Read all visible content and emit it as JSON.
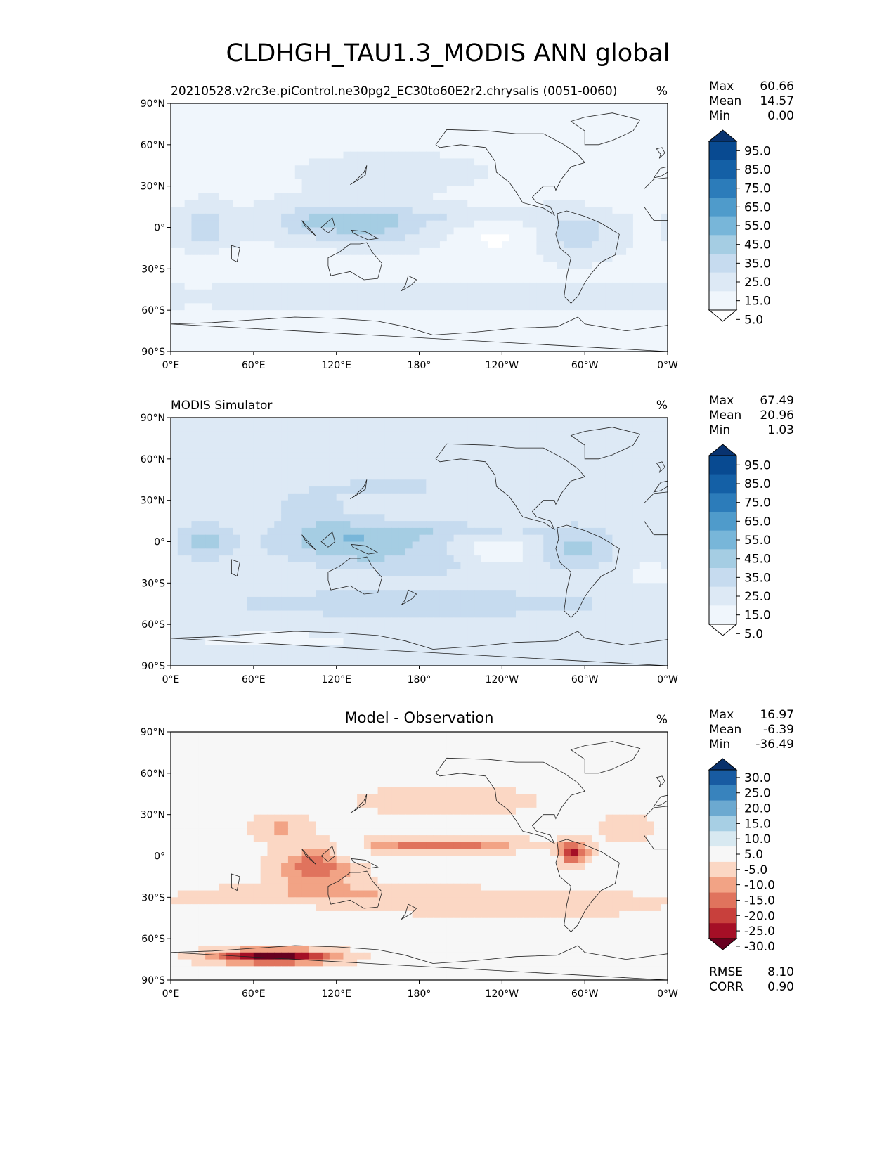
{
  "title": "CLDHGH_TAU1.3_MODIS ANN global",
  "panels": [
    {
      "kind": "test",
      "title_left": "20210528.v2rc3e.piControl.ne30pg2_EC30to60E2r2.chrysalis (0051-0060)",
      "title_center": "",
      "units": "%",
      "stats": [
        {
          "label": "Max",
          "value": "60.66"
        },
        {
          "label": "Mean",
          "value": "14.57"
        },
        {
          "label": "Min",
          "value": "0.00"
        }
      ],
      "colorbar": {
        "colors": [
          "#ffffff",
          "#f0f6fc",
          "#dde9f5",
          "#c6dbef",
          "#a5cde3",
          "#78b6d9",
          "#4f9bcb",
          "#2c7cba",
          "#1460a6",
          "#084a91",
          "#083370"
        ],
        "tick_labels": [
          "5.0",
          "15.0",
          "25.0",
          "35.0",
          "45.0",
          "55.0",
          "65.0",
          "75.0",
          "85.0",
          "95.0"
        ]
      }
    },
    {
      "kind": "reference",
      "title_left": "MODIS Simulator",
      "title_center": "",
      "units": "%",
      "stats": [
        {
          "label": "Max",
          "value": "67.49"
        },
        {
          "label": "Mean",
          "value": "20.96"
        },
        {
          "label": "Min",
          "value": "1.03"
        }
      ],
      "colorbar": {
        "colors": [
          "#ffffff",
          "#f0f6fc",
          "#dde9f5",
          "#c6dbef",
          "#a5cde3",
          "#78b6d9",
          "#4f9bcb",
          "#2c7cba",
          "#1460a6",
          "#084a91",
          "#083370"
        ],
        "tick_labels": [
          "5.0",
          "15.0",
          "25.0",
          "35.0",
          "45.0",
          "55.0",
          "65.0",
          "75.0",
          "85.0",
          "95.0"
        ]
      }
    },
    {
      "kind": "difference",
      "title_left": "",
      "title_center": "Model - Observation",
      "units": "%",
      "stats": [
        {
          "label": "Max",
          "value": "16.97"
        },
        {
          "label": "Mean",
          "value": "-6.39"
        },
        {
          "label": "Min",
          "value": "-36.49"
        }
      ],
      "colorbar": {
        "colors": [
          "#67001f",
          "#a50f26",
          "#c8403c",
          "#e0735d",
          "#f2a385",
          "#fbd7c4",
          "#f7f7f7",
          "#d8e9f1",
          "#a7cfe4",
          "#6ca9d0",
          "#3883bd",
          "#185ba2",
          "#08306b"
        ],
        "tick_labels": [
          "-30.0",
          "-25.0",
          "-20.0",
          "-15.0",
          "-10.0",
          "-5.0",
          "5.0",
          "10.0",
          "15.0",
          "20.0",
          "25.0",
          "30.0"
        ]
      },
      "metrics": [
        {
          "label": "RMSE",
          "value": "8.10"
        },
        {
          "label": "CORR",
          "value": "0.90"
        }
      ]
    }
  ],
  "axes": {
    "lat_ticks": [
      "90°N",
      "60°N",
      "30°N",
      "0°",
      "30°S",
      "60°S",
      "90°S"
    ],
    "lon_ticks": [
      "0°E",
      "60°E",
      "120°E",
      "180°",
      "120°W",
      "60°W",
      "0°W"
    ]
  }
}
